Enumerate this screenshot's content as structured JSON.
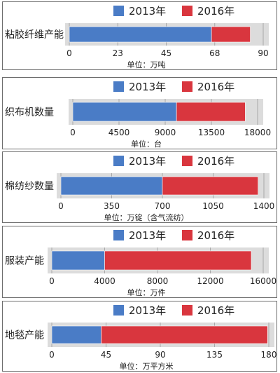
{
  "legend": {
    "series_a": "2013年",
    "series_b": "2016年"
  },
  "colors": {
    "series_a": "#4a7cc6",
    "series_b": "#d9363e",
    "track": "#dcdcdc"
  },
  "chart_data": [
    {
      "type": "bar",
      "orientation": "horizontal",
      "stacked": true,
      "categories": [
        "粘胶纤维产能"
      ],
      "series": [
        {
          "name": "2013年",
          "values": [
            66
          ]
        },
        {
          "name": "2016年",
          "values": [
            18
          ]
        }
      ],
      "xlim": [
        0,
        90
      ],
      "ticks": [
        "0",
        "23",
        "45",
        "68",
        "90"
      ],
      "unit": "单位：万吨"
    },
    {
      "type": "bar",
      "orientation": "horizontal",
      "stacked": true,
      "categories": [
        "织布机数量"
      ],
      "series": [
        {
          "name": "2013年",
          "values": [
            10100
          ]
        },
        {
          "name": "2016年",
          "values": [
            6700
          ]
        }
      ],
      "xlim": [
        0,
        18000
      ],
      "ticks": [
        "0",
        "4500",
        "9000",
        "13500",
        "18000"
      ],
      "unit": "单位：台"
    },
    {
      "type": "bar",
      "orientation": "horizontal",
      "stacked": true,
      "categories": [
        "棉纺纱数量"
      ],
      "series": [
        {
          "name": "2013年",
          "values": [
            700
          ]
        },
        {
          "name": "2016年",
          "values": [
            660
          ]
        }
      ],
      "xlim": [
        0,
        1400
      ],
      "ticks": [
        "0",
        "350",
        "700",
        "1050",
        "1400"
      ],
      "unit": "单位：万锭（含气流纺）"
    },
    {
      "type": "bar",
      "orientation": "horizontal",
      "stacked": true,
      "categories": [
        "服装产能"
      ],
      "series": [
        {
          "name": "2013年",
          "values": [
            4000
          ]
        },
        {
          "name": "2016年",
          "values": [
            11100
          ]
        }
      ],
      "xlim": [
        0,
        16000
      ],
      "ticks": [
        "0",
        "4000",
        "8000",
        "12000",
        "16000"
      ],
      "unit": "单位：万件"
    },
    {
      "type": "bar",
      "orientation": "horizontal",
      "stacked": true,
      "categories": [
        "地毯产能"
      ],
      "series": [
        {
          "name": "2013年",
          "values": [
            41
          ]
        },
        {
          "name": "2016年",
          "values": [
            138
          ]
        }
      ],
      "xlim": [
        0,
        180
      ],
      "ticks": [
        "0",
        "45",
        "90",
        "135",
        "180"
      ],
      "unit": "单位：万平方米"
    }
  ]
}
